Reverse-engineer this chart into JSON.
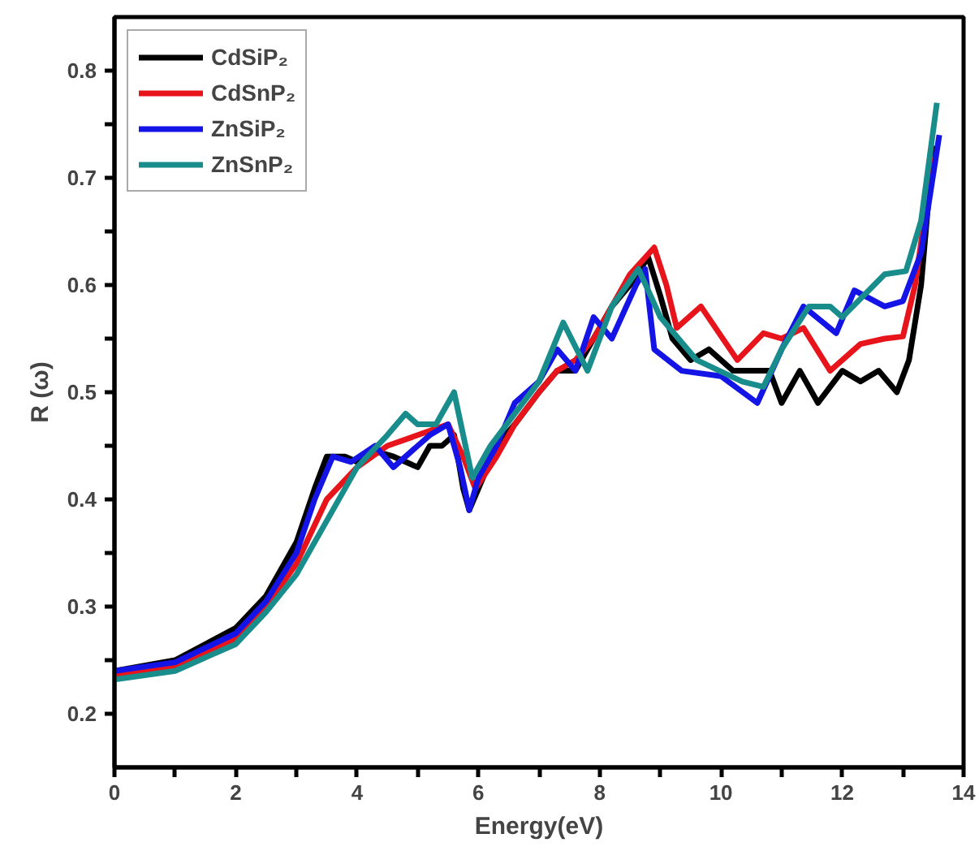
{
  "chart_data": {
    "type": "line",
    "xlabel": "Energy(eV)",
    "ylabel": "R (ω)",
    "xlim": [
      0,
      14
    ],
    "ylim": [
      0.15,
      0.85
    ],
    "xticks": [
      0,
      {
        "value": 1,
        "label": null
      },
      2,
      {
        "value": 3,
        "label": null
      },
      4,
      {
        "value": 5,
        "label": null
      },
      6,
      {
        "value": 7,
        "label": null
      },
      8,
      {
        "value": 9,
        "label": null
      },
      10,
      {
        "value": 11,
        "label": null
      },
      12,
      {
        "value": 13,
        "label": null
      },
      14
    ],
    "yticks": [
      0.2,
      {
        "value": 0.25,
        "label": null
      },
      0.3,
      {
        "value": 0.35,
        "label": null
      },
      0.4,
      {
        "value": 0.45,
        "label": null
      },
      0.5,
      {
        "value": 0.55,
        "label": null
      },
      0.6,
      {
        "value": 0.65,
        "label": null
      },
      0.7,
      {
        "value": 0.75,
        "label": null
      },
      0.8
    ],
    "grid": false,
    "legend": "top left",
    "marker": "none",
    "line_style": "solid",
    "series": [
      {
        "name": "CdSiP₂",
        "color": "#000000",
        "x": [
          0,
          1,
          2,
          2.5,
          3,
          3.3,
          3.5,
          3.8,
          4,
          4.3,
          4.6,
          4.8,
          5.0,
          5.2,
          5.4,
          5.6,
          5.75,
          5.85,
          6.0,
          6.3,
          6.6,
          7.0,
          7.3,
          7.6,
          7.9,
          8.2,
          8.5,
          8.8,
          9.0,
          9.2,
          9.5,
          9.8,
          10.2,
          10.5,
          10.8,
          11.0,
          11.3,
          11.6,
          12.0,
          12.3,
          12.6,
          12.9,
          13.1,
          13.3,
          13.5
        ],
        "values": [
          0.24,
          0.25,
          0.28,
          0.31,
          0.36,
          0.41,
          0.44,
          0.44,
          0.435,
          0.445,
          0.44,
          0.435,
          0.43,
          0.45,
          0.45,
          0.46,
          0.41,
          0.39,
          0.41,
          0.45,
          0.47,
          0.5,
          0.52,
          0.52,
          0.55,
          0.58,
          0.6,
          0.626,
          0.59,
          0.55,
          0.53,
          0.54,
          0.52,
          0.52,
          0.52,
          0.49,
          0.52,
          0.49,
          0.52,
          0.51,
          0.52,
          0.5,
          0.53,
          0.6,
          0.73
        ]
      },
      {
        "name": "CdSnP₂",
        "color": "#e8141b",
        "x": [
          0,
          1,
          2,
          2.5,
          3,
          3.5,
          4.0,
          4.5,
          5.0,
          5.5,
          5.75,
          5.95,
          6.3,
          6.6,
          7.0,
          7.3,
          7.6,
          7.9,
          8.2,
          8.5,
          8.9,
          9.1,
          9.27,
          9.67,
          10.27,
          10.7,
          11.0,
          11.36,
          11.8,
          12.3,
          12.7,
          13.0,
          13.2,
          13.5
        ],
        "values": [
          0.235,
          0.245,
          0.27,
          0.3,
          0.34,
          0.4,
          0.43,
          0.45,
          0.46,
          0.47,
          0.44,
          0.41,
          0.44,
          0.47,
          0.5,
          0.52,
          0.53,
          0.55,
          0.58,
          0.61,
          0.635,
          0.6,
          0.56,
          0.58,
          0.53,
          0.555,
          0.55,
          0.56,
          0.52,
          0.545,
          0.55,
          0.552,
          0.6,
          0.72
        ]
      },
      {
        "name": "ZnSiP₂",
        "color": "#1414e6",
        "x": [
          0,
          1,
          2,
          2.5,
          3,
          3.3,
          3.6,
          3.9,
          4.3,
          4.6,
          5.0,
          5.2,
          5.5,
          5.7,
          5.85,
          6.0,
          6.3,
          6.6,
          7.0,
          7.3,
          7.6,
          7.9,
          8.2,
          8.6,
          8.75,
          8.9,
          9.35,
          10.0,
          10.6,
          11.0,
          11.36,
          11.9,
          12.2,
          12.7,
          13.0,
          13.3,
          13.6
        ],
        "values": [
          0.24,
          0.248,
          0.275,
          0.305,
          0.35,
          0.4,
          0.44,
          0.435,
          0.45,
          0.43,
          0.45,
          0.46,
          0.47,
          0.43,
          0.39,
          0.42,
          0.45,
          0.49,
          0.51,
          0.54,
          0.52,
          0.57,
          0.55,
          0.6,
          0.615,
          0.54,
          0.52,
          0.515,
          0.49,
          0.54,
          0.58,
          0.555,
          0.595,
          0.58,
          0.585,
          0.63,
          0.74
        ]
      },
      {
        "name": "ZnSnP₂",
        "color": "#198c8c",
        "x": [
          0,
          1,
          2,
          2.5,
          3,
          3.5,
          4.0,
          4.5,
          4.8,
          5.0,
          5.3,
          5.6,
          5.75,
          5.9,
          6.2,
          6.6,
          7.0,
          7.4,
          7.8,
          8.2,
          8.64,
          9.0,
          9.6,
          10.35,
          10.7,
          11.0,
          11.45,
          11.8,
          12.0,
          12.7,
          13.05,
          13.3,
          13.56
        ],
        "values": [
          0.232,
          0.24,
          0.265,
          0.295,
          0.33,
          0.38,
          0.43,
          0.46,
          0.48,
          0.47,
          0.47,
          0.5,
          0.46,
          0.42,
          0.45,
          0.48,
          0.51,
          0.565,
          0.52,
          0.58,
          0.615,
          0.57,
          0.53,
          0.51,
          0.505,
          0.54,
          0.58,
          0.58,
          0.57,
          0.61,
          0.613,
          0.66,
          0.77
        ]
      }
    ]
  }
}
